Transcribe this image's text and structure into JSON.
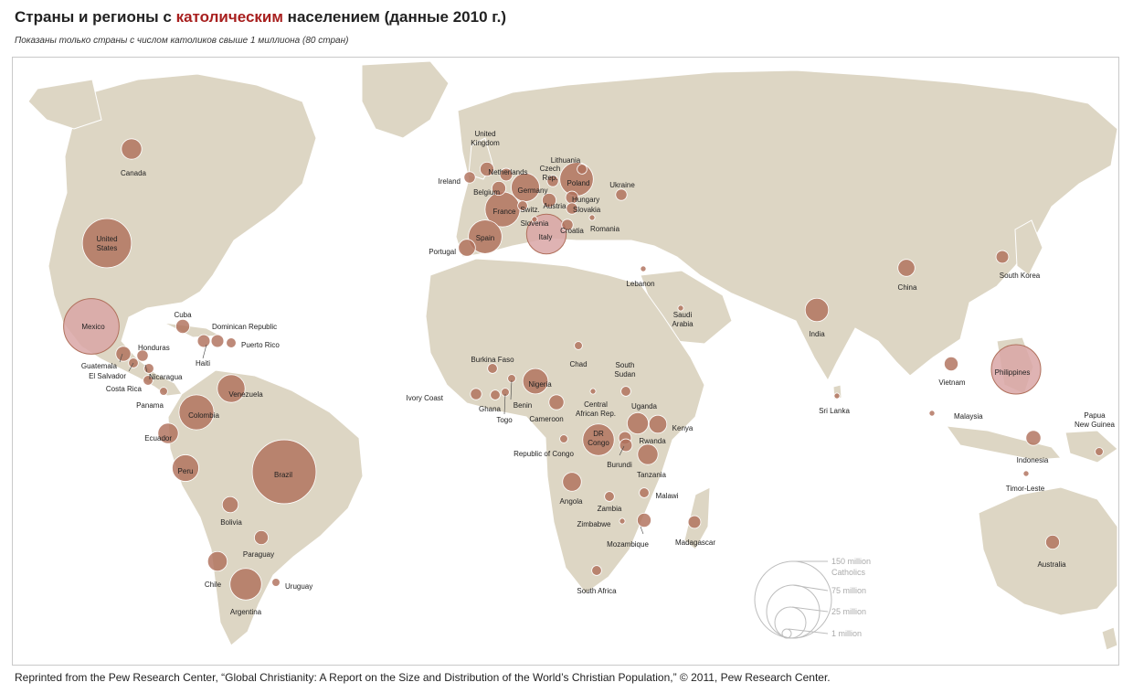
{
  "header": {
    "title_pre": "Страны и регионы с ",
    "title_highlight": "католическим",
    "title_post": " населением (данные 2010 г.)",
    "subtitle": "Показаны только страны с числом католиков свыше 1 миллиона (80 стран)"
  },
  "colors": {
    "land": "#ddd6c4",
    "bubble": "#b0705c",
    "bubble_highlight": "#d9a6a6",
    "title_highlight": "#a8201f"
  },
  "legend": {
    "items": [
      {
        "label": "150 million",
        "value_millions": 150
      },
      {
        "label": "Catholics",
        "value_millions": null
      },
      {
        "label": "75 million",
        "value_millions": 75
      },
      {
        "label": "25 million",
        "value_millions": 25
      },
      {
        "label": "1 million",
        "value_millions": 1
      }
    ]
  },
  "countries": [
    {
      "name": "Canada",
      "catholics_millions": 13
    },
    {
      "name": "United\nStates",
      "catholics_millions": 75
    },
    {
      "name": "Mexico",
      "catholics_millions": 96
    },
    {
      "name": "Cuba",
      "catholics_millions": 6
    },
    {
      "name": "Dominican Republic",
      "catholics_millions": 5
    },
    {
      "name": "Haiti",
      "catholics_millions": 5
    },
    {
      "name": "Puerto Rico",
      "catholics_millions": 3
    },
    {
      "name": "Honduras",
      "catholics_millions": 4
    },
    {
      "name": "Guatemala",
      "catholics_millions": 7
    },
    {
      "name": "El Salvador",
      "catholics_millions": 3
    },
    {
      "name": "Nicaragua",
      "catholics_millions": 3
    },
    {
      "name": "Costa Rica",
      "catholics_millions": 3
    },
    {
      "name": "Panama",
      "catholics_millions": 2
    },
    {
      "name": "Venezuela",
      "catholics_millions": 24
    },
    {
      "name": "Colombia",
      "catholics_millions": 38
    },
    {
      "name": "Ecuador",
      "catholics_millions": 13
    },
    {
      "name": "Peru",
      "catholics_millions": 22
    },
    {
      "name": "Brazil",
      "catholics_millions": 127
    },
    {
      "name": "Bolivia",
      "catholics_millions": 8
    },
    {
      "name": "Paraguay",
      "catholics_millions": 6
    },
    {
      "name": "Chile",
      "catholics_millions": 12
    },
    {
      "name": "Argentina",
      "catholics_millions": 31
    },
    {
      "name": "Uruguay",
      "catholics_millions": 2
    },
    {
      "name": "United\nKingdom",
      "catholics_millions": 6
    },
    {
      "name": "Ireland",
      "catholics_millions": 4
    },
    {
      "name": "Netherlands",
      "catholics_millions": 5
    },
    {
      "name": "Belgium",
      "catholics_millions": 6
    },
    {
      "name": "Germany",
      "catholics_millions": 25
    },
    {
      "name": "Czech\nRep.",
      "catholics_millions": 4
    },
    {
      "name": "Poland",
      "catholics_millions": 35
    },
    {
      "name": "Lithuania",
      "catholics_millions": 3
    },
    {
      "name": "Ukraine",
      "catholics_millions": 4
    },
    {
      "name": "France",
      "catholics_millions": 38
    },
    {
      "name": "Switz.",
      "catholics_millions": 3
    },
    {
      "name": "Austria",
      "catholics_millions": 6
    },
    {
      "name": "Hungary",
      "catholics_millions": 5
    },
    {
      "name": "Slovakia",
      "catholics_millions": 4
    },
    {
      "name": "Slovenia",
      "catholics_millions": 1
    },
    {
      "name": "Croatia",
      "catholics_millions": 4
    },
    {
      "name": "Romania",
      "catholics_millions": 1
    },
    {
      "name": "Italy",
      "catholics_millions": 49
    },
    {
      "name": "Spain",
      "catholics_millions": 35
    },
    {
      "name": "Portugal",
      "catholics_millions": 9
    },
    {
      "name": "Lebanon",
      "catholics_millions": 1
    },
    {
      "name": "Saudi\nArabia",
      "catholics_millions": 1
    },
    {
      "name": "Burkina Faso",
      "catholics_millions": 3
    },
    {
      "name": "Chad",
      "catholics_millions": 2
    },
    {
      "name": "Nigeria",
      "catholics_millions": 20
    },
    {
      "name": "South\nSudan",
      "catholics_millions": 3
    },
    {
      "name": "Ivory Coast",
      "catholics_millions": 4
    },
    {
      "name": "Ghana",
      "catholics_millions": 3
    },
    {
      "name": "Benin",
      "catholics_millions": 2
    },
    {
      "name": "Togo",
      "catholics_millions": 2
    },
    {
      "name": "Cameroon",
      "catholics_millions": 7
    },
    {
      "name": "Central\nAfrican Rep.",
      "catholics_millions": 1
    },
    {
      "name": "Uganda",
      "catholics_millions": 14
    },
    {
      "name": "Kenya",
      "catholics_millions": 10
    },
    {
      "name": "DR\nCongo",
      "catholics_millions": 31
    },
    {
      "name": "Republic of Congo",
      "catholics_millions": 2
    },
    {
      "name": "Rwanda",
      "catholics_millions": 5
    },
    {
      "name": "Burundi",
      "catholics_millions": 5
    },
    {
      "name": "Tanzania",
      "catholics_millions": 13
    },
    {
      "name": "Angola",
      "catholics_millions": 11
    },
    {
      "name": "Malawi",
      "catholics_millions": 3
    },
    {
      "name": "Zambia",
      "catholics_millions": 3
    },
    {
      "name": "Zimbabwe",
      "catholics_millions": 1
    },
    {
      "name": "Mozambique",
      "catholics_millions": 6
    },
    {
      "name": "Madagascar",
      "catholics_millions": 5
    },
    {
      "name": "South Africa",
      "catholics_millions": 3
    },
    {
      "name": "India",
      "catholics_millions": 17
    },
    {
      "name": "China",
      "catholics_millions": 9
    },
    {
      "name": "South Korea",
      "catholics_millions": 5
    },
    {
      "name": "Sri Lanka",
      "catholics_millions": 1
    },
    {
      "name": "Vietnam",
      "catholics_millions": 6
    },
    {
      "name": "Philippines",
      "catholics_millions": 76
    },
    {
      "name": "Malaysia",
      "catholics_millions": 1
    },
    {
      "name": "Indonesia",
      "catholics_millions": 7
    },
    {
      "name": "Papua\nNew Guinea",
      "catholics_millions": 2
    },
    {
      "name": "Timor-Leste",
      "catholics_millions": 1
    },
    {
      "name": "Australia",
      "catholics_millions": 6
    }
  ],
  "footer": {
    "credit": "Reprinted from the Pew Research Center, “Global Christianity: A Report on the Size and Distribution of the World’s Christian Population,” © 2011, Pew Research Center."
  }
}
